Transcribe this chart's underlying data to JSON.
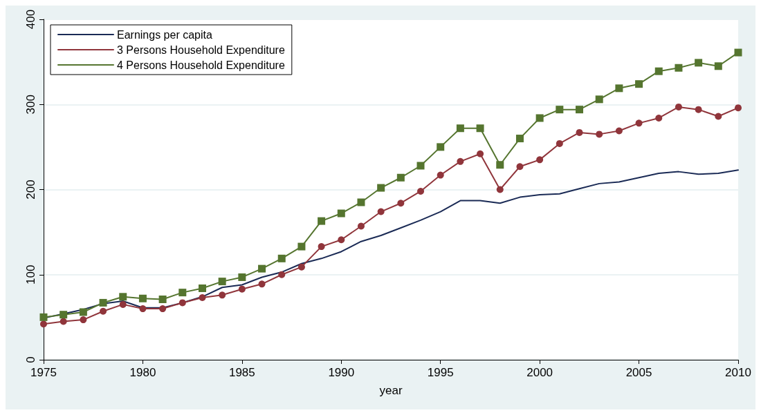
{
  "chart_data": {
    "type": "line",
    "xlabel": "year",
    "x": [
      1975,
      1976,
      1977,
      1978,
      1979,
      1980,
      1981,
      1982,
      1983,
      1984,
      1985,
      1986,
      1987,
      1988,
      1989,
      1990,
      1991,
      1992,
      1993,
      1994,
      1995,
      1996,
      1997,
      1998,
      1999,
      2000,
      2001,
      2002,
      2003,
      2004,
      2005,
      2006,
      2007,
      2008,
      2009,
      2010
    ],
    "series": [
      {
        "name": "Earnings per capita",
        "color": "#1a2a55",
        "marker": "none",
        "values": [
          49,
          54,
          59,
          66,
          69,
          61,
          61,
          67,
          74,
          85,
          88,
          97,
          103,
          113,
          119,
          127,
          139,
          146,
          155,
          164,
          174,
          187,
          187,
          184,
          191,
          194,
          195,
          201,
          207,
          209,
          214,
          219,
          221,
          218,
          219,
          223
        ]
      },
      {
        "name": "3 Persons Household Expenditure",
        "color": "#90353b",
        "marker": "circle",
        "values": [
          42,
          45,
          47,
          57,
          65,
          60,
          60,
          67,
          73,
          76,
          83,
          89,
          100,
          109,
          133,
          141,
          157,
          174,
          184,
          198,
          217,
          233,
          242,
          200,
          227,
          235,
          254,
          267,
          265,
          269,
          278,
          284,
          297,
          294,
          286,
          296
        ]
      },
      {
        "name": "4 Persons Household Expenditure",
        "color": "#55752f",
        "marker": "square",
        "values": [
          50,
          53,
          56,
          67,
          74,
          72,
          71,
          79,
          84,
          92,
          97,
          107,
          119,
          133,
          163,
          172,
          185,
          202,
          214,
          228,
          250,
          272,
          272,
          229,
          260,
          284,
          294,
          294,
          306,
          319,
          324,
          339,
          343,
          349,
          345,
          361
        ]
      }
    ],
    "xlim": [
      1975,
      2010
    ],
    "xticks": [
      1975,
      1980,
      1985,
      1990,
      1995,
      2000,
      2005,
      2010
    ],
    "ylim": [
      0,
      400
    ],
    "yticks": [
      0,
      100,
      200,
      300,
      400
    ],
    "grid": "y",
    "legend": "top left",
    "line_style": "solid"
  }
}
